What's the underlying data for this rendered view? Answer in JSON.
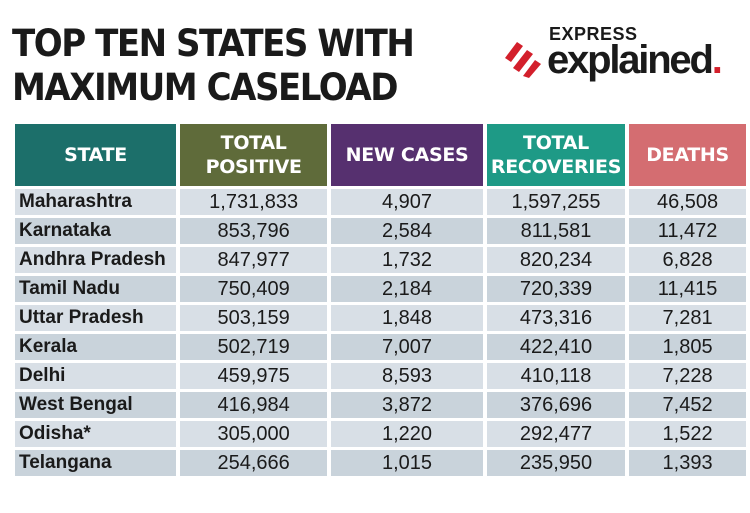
{
  "title_lines": [
    "TOP TEN STATES WITH",
    "MAXIMUM CASELOAD"
  ],
  "logo": {
    "top": "EXPRESS",
    "main": "explained",
    "dot": ".",
    "accent": "#d31f2b"
  },
  "colors": {
    "state": "#1c6f6a",
    "positive": "#5f6b3a",
    "new": "#56306f",
    "recoveries": "#1e9a86",
    "deaths": "#d46d71",
    "row_a": "#d8dfe6",
    "row_b": "#c9d3db"
  },
  "chart_data": {
    "type": "table",
    "columns": [
      {
        "key": "state",
        "label": "STATE",
        "color_key": "state"
      },
      {
        "key": "total_positive",
        "label": "TOTAL POSITIVE",
        "color_key": "positive"
      },
      {
        "key": "new_cases",
        "label": "NEW CASES",
        "color_key": "new"
      },
      {
        "key": "total_recoveries",
        "label": "TOTAL RECOVERIES",
        "color_key": "recoveries"
      },
      {
        "key": "deaths",
        "label": "DEATHS",
        "color_key": "deaths"
      }
    ],
    "rows": [
      [
        "Maharashtra",
        "1,731,833",
        "4,907",
        "1,597,255",
        "46,508"
      ],
      [
        "Karnataka",
        "853,796",
        "2,584",
        "811,581",
        "11,472"
      ],
      [
        "Andhra Pradesh",
        "847,977",
        "1,732",
        "820,234",
        "6,828"
      ],
      [
        "Tamil Nadu",
        "750,409",
        "2,184",
        "720,339",
        "11,415"
      ],
      [
        "Uttar Pradesh",
        "503,159",
        "1,848",
        "473,316",
        "7,281"
      ],
      [
        "Kerala",
        "502,719",
        "7,007",
        "422,410",
        "1,805"
      ],
      [
        "Delhi",
        "459,975",
        "8,593",
        "410,118",
        "7,228"
      ],
      [
        "West Bengal",
        "416,984",
        "3,872",
        "376,696",
        "7,452"
      ],
      [
        "Odisha*",
        "305,000",
        "1,220",
        "292,477",
        "1,522"
      ],
      [
        "Telangana",
        "254,666",
        "1,015",
        "235,950",
        "1,393"
      ]
    ]
  }
}
